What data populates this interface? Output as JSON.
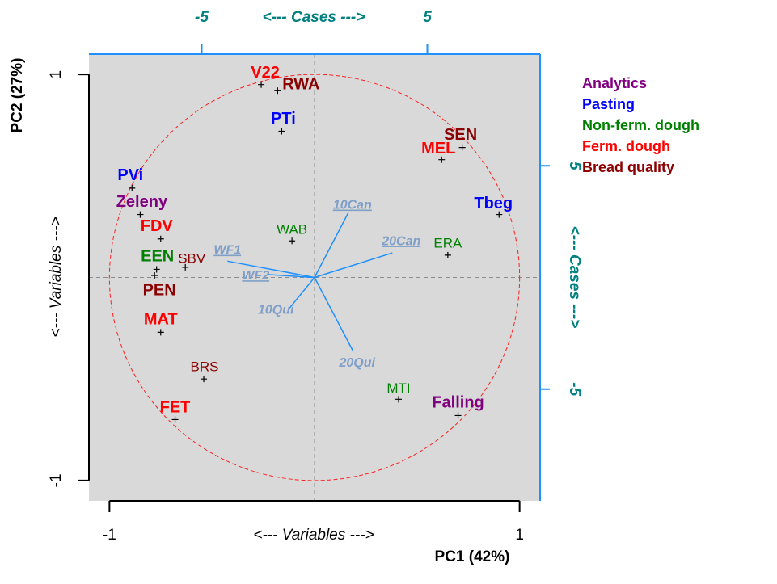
{
  "chart_data": {
    "type": "biplot",
    "xlabel": "PC1 (42%)",
    "ylabel": "PC2 (27%)",
    "variables_label": "<--- Variables --->",
    "cases_label": "<--- Cases --->",
    "xlim": [
      -1.1,
      1.1
    ],
    "ylim": [
      -1.1,
      1.1
    ],
    "xticks": [
      -1,
      1
    ],
    "yticks": [
      -1,
      1
    ],
    "x2lim": [
      -10,
      10
    ],
    "y2lim": [
      -10,
      10
    ],
    "x2ticks": [
      -5,
      5
    ],
    "y2ticks": [
      -5,
      5
    ],
    "circle": 1,
    "series": [
      {
        "name": "Analytics",
        "color": "#800080",
        "labels": [
          "Zeleny",
          "Falling"
        ],
        "bold": [
          true,
          true
        ],
        "x": [
          -0.85,
          0.7
        ],
        "values": [
          0.31,
          -0.68
        ]
      },
      {
        "name": "Pasting",
        "color": "#0000ff",
        "labels": [
          "PVi",
          "PTi",
          "Tbeg"
        ],
        "bold": [
          true,
          true,
          true
        ],
        "x": [
          -0.89,
          -0.16,
          0.9
        ],
        "values": [
          0.44,
          0.72,
          0.31
        ]
      },
      {
        "name": "Non-ferm. dough",
        "color": "#008000",
        "labels": [
          "WAB",
          "ERA",
          "MTI",
          "EEN"
        ],
        "bold": [
          false,
          false,
          false,
          true
        ],
        "x": [
          -0.11,
          0.65,
          0.41,
          -0.77
        ],
        "values": [
          0.18,
          0.11,
          -0.6,
          0.04
        ]
      },
      {
        "name": "Ferm. dough",
        "color": "#ff0000",
        "labels": [
          "V22",
          "MEL",
          "FDV",
          "MAT",
          "FET"
        ],
        "bold": [
          true,
          true,
          true,
          true,
          true
        ],
        "x": [
          -0.26,
          0.62,
          -0.75,
          -0.75,
          -0.68
        ],
        "values": [
          0.95,
          0.58,
          0.19,
          -0.27,
          -0.7
        ]
      },
      {
        "name": "Bread quality",
        "color": "#8b0000",
        "labels": [
          "RWA",
          "SEN",
          "SBV",
          "PEN",
          "BRS"
        ],
        "bold": [
          true,
          true,
          false,
          true,
          false
        ],
        "x": [
          -0.18,
          0.72,
          -0.63,
          -0.78,
          -0.54
        ],
        "values": [
          0.92,
          0.64,
          0.05,
          0.01,
          -0.5
        ]
      }
    ],
    "vectors": {
      "axis": "y2",
      "color": "#1e90ff",
      "label_color": "#7f9fc8",
      "labels": [
        "10Can",
        "20Can",
        "WF1",
        "WF2",
        "10Qui",
        "20Qui"
      ],
      "underline": [
        true,
        true,
        true,
        true,
        false,
        false
      ],
      "x": [
        1.5,
        3.45,
        -3.86,
        -2.07,
        -1.14,
        1.71
      ],
      "values": [
        2.9,
        1.1,
        0.73,
        0.13,
        -1.41,
        -3.3
      ]
    }
  }
}
